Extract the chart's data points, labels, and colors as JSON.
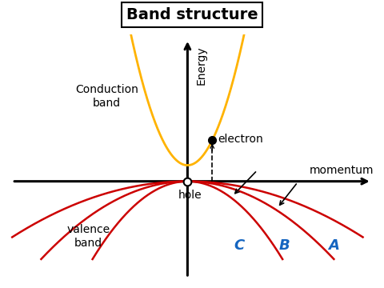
{
  "title": "Band structure",
  "background_color": "#ffffff",
  "axis_color": "#000000",
  "conduction_band_color": "#FFB300",
  "valence_band_color": "#CC0000",
  "label_color": "#000000",
  "blue_label_color": "#1565C0",
  "electron_label": "electron",
  "hole_label": "hole",
  "conduction_label": "Conduction\nband",
  "valence_label": "valence\nband",
  "momentum_label": "momentum",
  "energy_label": "Energy",
  "title_fontsize": 14,
  "label_fontsize": 10,
  "axis_label_fontsize": 10,
  "cb_scale": 1.8,
  "cb_min_y": 0.35,
  "cb_x_range": 1.2,
  "electron_x": 0.55,
  "vb_scales": [
    0.08,
    0.16,
    0.38
  ],
  "vb_xlim": 3.8,
  "vb_ylim": -1.7,
  "xlim": [
    -4.0,
    4.2
  ],
  "ylim": [
    -2.2,
    3.2
  ]
}
